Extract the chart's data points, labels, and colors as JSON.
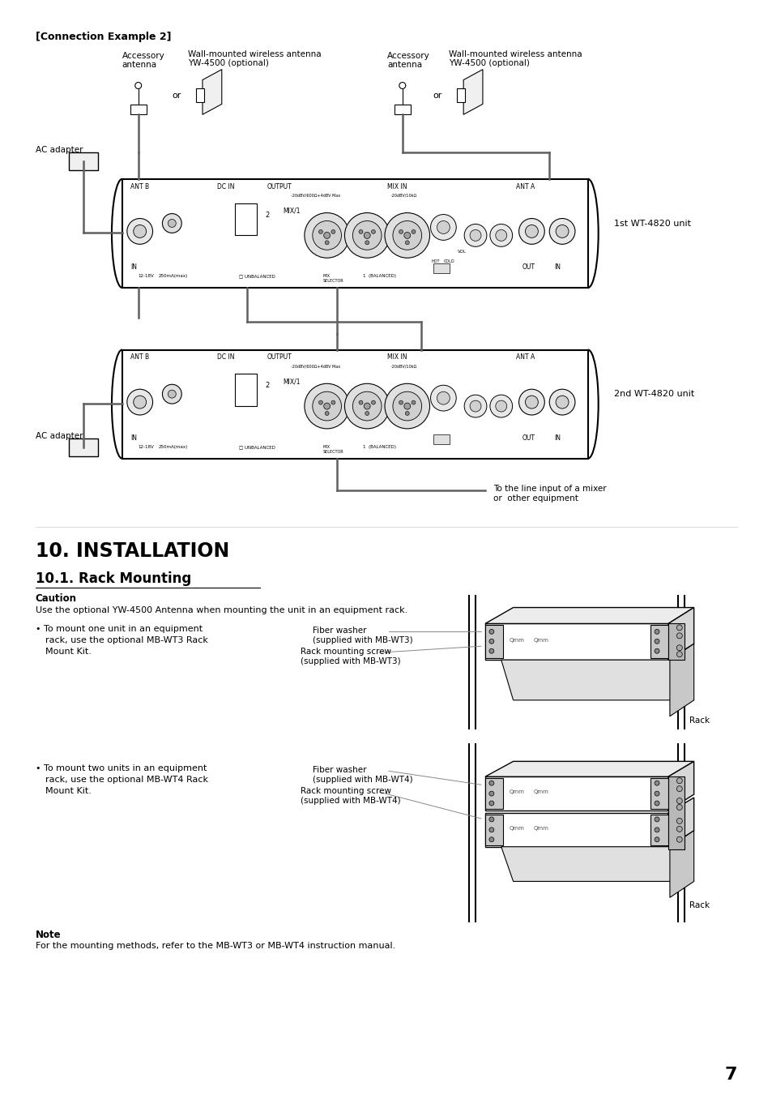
{
  "page_bg": "#ffffff",
  "page_num": "7",
  "lc": "#000000",
  "gc": "#888888",
  "connection_title": "[Connection Example 2]",
  "label_acc_ant": "Accessory\nantenna",
  "label_wall_ant": "Wall-mounted wireless antenna\nYW-4500 (optional)",
  "label_or": "or",
  "label_ac": "AC adapter",
  "label_1st": "1st WT-4820 unit",
  "label_2nd": "2nd WT-4820 unit",
  "label_mixer": "To the line input of a mixer\nor  other equipment",
  "install_title": "10. INSTALLATION",
  "rack_title": "10.1. Rack Mounting",
  "caution_head": "Caution",
  "caution_text": "Use the optional YW-4500 Antenna when mounting the unit in an equipment rack.",
  "bullet1_text": "• To mount one unit in an equipment\n  rack, use the optional MB-WT3 Rack\n  Mount Kit.",
  "fw1": "Fiber washer\n(supplied with MB-WT3)",
  "rs1": "Rack mounting screw\n(supplied with MB-WT3)",
  "rack_label1": "Rack",
  "bullet2_text": "• To mount two units in an equipment\n  rack, use the optional MB-WT4 Rack\n  Mount Kit.",
  "fw2": "Fiber washer\n(supplied with MB-WT4)",
  "rs2": "Rack mounting screw\n(supplied with MB-WT4)",
  "rack_label2": "Rack",
  "note_head": "Note",
  "note_text": "For the mounting methods, refer to the MB-WT3 or MB-WT4 instruction manual."
}
